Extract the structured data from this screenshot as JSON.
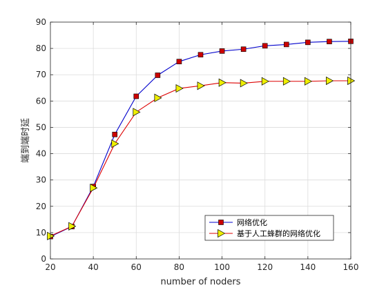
{
  "chart_data": {
    "type": "line",
    "title": "",
    "xlabel": "number of noders",
    "ylabel": "端到端时延",
    "xlim": [
      20,
      160
    ],
    "ylim": [
      0,
      90
    ],
    "xticks": [
      20,
      40,
      60,
      80,
      100,
      120,
      140,
      160
    ],
    "yticks": [
      0,
      10,
      20,
      30,
      40,
      50,
      60,
      70,
      80,
      90
    ],
    "grid": true,
    "legend_position": "bottom-right",
    "x": [
      20,
      30,
      40,
      50,
      60,
      70,
      80,
      90,
      100,
      110,
      120,
      130,
      140,
      150,
      160
    ],
    "series": [
      {
        "name": "网络优化",
        "line_color": "#0000cc",
        "marker": "square",
        "marker_color": "#cc0000",
        "values": [
          8.5,
          12.3,
          27.5,
          47.3,
          61.8,
          69.8,
          75.0,
          77.6,
          79.0,
          79.7,
          81.0,
          81.5,
          82.3,
          82.6,
          82.7
        ]
      },
      {
        "name": "基于人工蜂群的网络优化",
        "line_color": "#dd0000",
        "marker": "triangle-right",
        "marker_color": "#eeee00",
        "values": [
          8.7,
          12.4,
          27.0,
          43.8,
          55.8,
          61.2,
          64.8,
          65.8,
          67.0,
          66.8,
          67.5,
          67.5,
          67.5,
          67.7,
          67.7
        ]
      }
    ]
  }
}
